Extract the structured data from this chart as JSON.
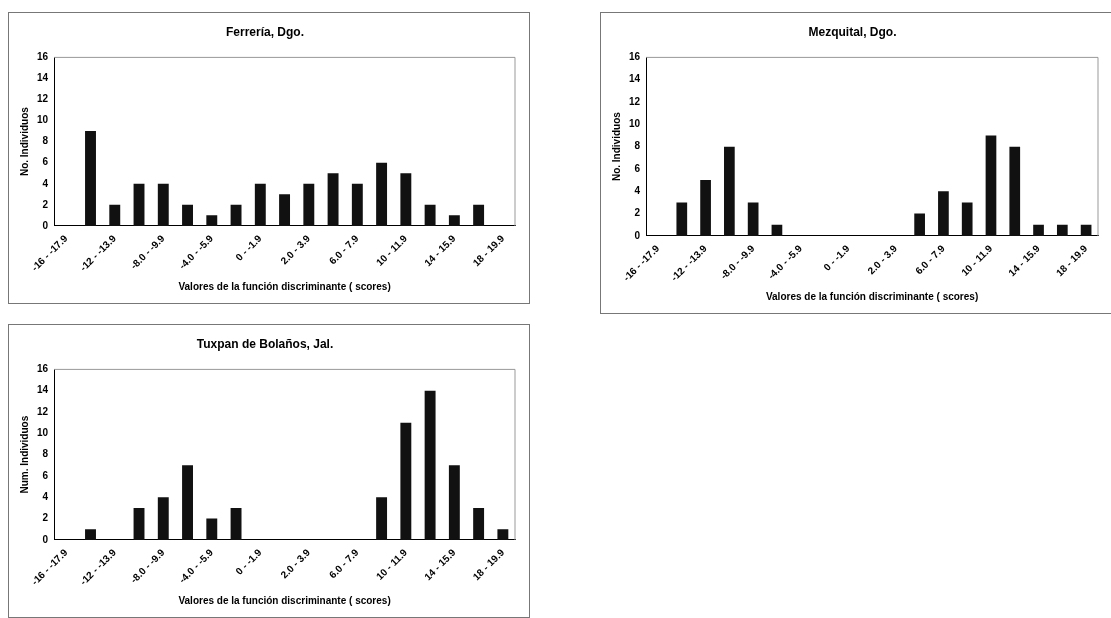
{
  "chart_data": [
    {
      "type": "bar",
      "title": "Ferrería, Dgo.",
      "xlabel": "Valores de la función discriminante ( scores)",
      "ylabel": "No. Individuos",
      "categories": [
        "-16 - -17.9",
        null,
        "-12 - -13.9",
        null,
        "-8.0 - -9.9",
        null,
        "-4.0 - -5.9",
        null,
        "0 - -1.9",
        null,
        "2.0 - 3.9",
        null,
        "6.0 - 7.9",
        null,
        "10 - 11.9",
        null,
        "14 - 15.9",
        null,
        "18 - 19.9"
      ],
      "values": [
        0,
        9,
        2,
        4,
        4,
        2,
        1,
        2,
        4,
        3,
        4,
        5,
        4,
        6,
        5,
        2,
        1,
        2,
        0
      ],
      "color": "#111111",
      "ylim": [
        0,
        16
      ],
      "yticks": [
        0,
        2,
        4,
        6,
        8,
        10,
        12,
        14,
        16
      ],
      "grid": false,
      "legend": false
    },
    {
      "type": "bar",
      "title": "Mezquital, Dgo.",
      "xlabel": "Valores de la función discriminante ( scores)",
      "ylabel": "No. Individuos",
      "categories": [
        "-16 - -17.9",
        null,
        "-12 - -13.9",
        null,
        "-8.0 - -9.9",
        null,
        "-4.0 - -5.9",
        null,
        "0 - -1.9",
        null,
        "2.0 - 3.9",
        null,
        "6.0 - 7.9",
        null,
        "10 - 11.9",
        null,
        "14 - 15.9",
        null,
        "18 - 19.9"
      ],
      "values": [
        0,
        3,
        5,
        8,
        3,
        1,
        0,
        0,
        0,
        0,
        0,
        2,
        4,
        3,
        9,
        8,
        1,
        1,
        1
      ],
      "color": "#111111",
      "ylim": [
        0,
        16
      ],
      "yticks": [
        0,
        2,
        4,
        6,
        8,
        10,
        12,
        14,
        16
      ],
      "grid": false,
      "legend": false
    },
    {
      "type": "bar",
      "title": "Tuxpan de Bolaños, Jal.",
      "xlabel": "Valores de la función discriminante ( scores)",
      "ylabel": "Num. Individuos",
      "categories": [
        "-16 - -17.9",
        null,
        "-12 - -13.9",
        null,
        "-8.0 - -9.9",
        null,
        "-4.0 - -5.9",
        null,
        "0 - -1.9",
        null,
        "2.0 - 3.9",
        null,
        "6.0 - 7.9",
        null,
        "10 - 11.9",
        null,
        "14 - 15.9",
        null,
        "18 - 19.9"
      ],
      "values": [
        0,
        1,
        0,
        3,
        4,
        7,
        2,
        3,
        0,
        0,
        0,
        0,
        0,
        4,
        11,
        14,
        7,
        3,
        1
      ],
      "color": "#111111",
      "ylim": [
        0,
        16
      ],
      "yticks": [
        0,
        2,
        4,
        6,
        8,
        10,
        12,
        14,
        16
      ],
      "grid": false,
      "legend": false
    }
  ]
}
